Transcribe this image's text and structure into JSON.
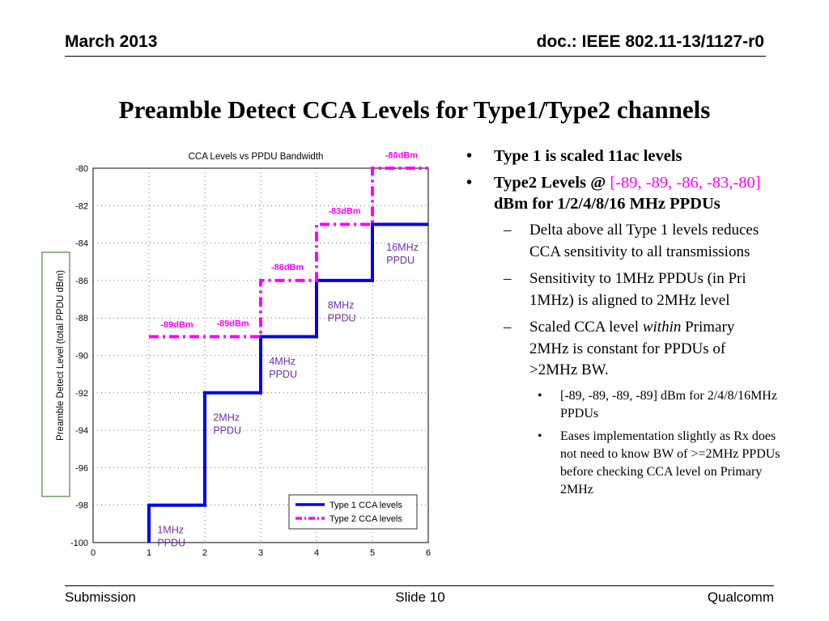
{
  "header": {
    "date": "March 2013",
    "doc": "doc.: IEEE 802.11-13/1127-r0"
  },
  "title": "Preamble Detect CCA Levels for Type1/Type2 channels",
  "footer": {
    "left": "Submission",
    "center": "Slide 10",
    "right": "Qualcomm"
  },
  "bullets": {
    "b1": "Type 1 is scaled 11ac levels",
    "b2_pre": "Type2 Levels @ ",
    "b2_hl": "[-89, -89, -86, -83,-80]",
    "b2_post": " dBm for 1/2/4/8/16 MHz PPDUs",
    "s1": "Delta above all Type 1 levels reduces CCA sensitivity to all transmissions",
    "s2": "Sensitivity to 1MHz PPDUs (in Pri 1MHz) is aligned to 2MHz level",
    "s3_pre": "Scaled CCA level ",
    "s3_it": "within",
    "s3_post": " Primary 2MHz is constant for PPDUs of >2MHz BW.",
    "t1": "[-89, -89, -89, -89] dBm for 2/4/8/16MHz PPDUs",
    "t2": "Eases implementation slightly as Rx does not need to know BW of >=2MHz PPDUs before checking CCA level on Primary 2MHz"
  },
  "chart_data": {
    "type": "line",
    "title": "CCA Levels vs PPDU Bandwidth",
    "ylabel": "Preamble Detect Level (total PPDU dBm)",
    "xlabel": "",
    "xlim": [
      0,
      6
    ],
    "ylim": [
      -100,
      -80
    ],
    "xticks": [
      "0",
      "1",
      "2",
      "3",
      "4",
      "5",
      "6"
    ],
    "yticks": [
      "-80",
      "-82",
      "-84",
      "-86",
      "-88",
      "-90",
      "-92",
      "-94",
      "-96",
      "-98",
      "-100"
    ],
    "grid": true,
    "legend": "bottom-right",
    "series": [
      {
        "name": "Type 1 CCA levels",
        "color": "#0000ee",
        "style": "solid",
        "x": [
          1,
          1,
          2,
          2,
          3,
          3,
          4,
          4,
          5,
          5,
          6
        ],
        "y": [
          -100,
          -98,
          -98,
          -92,
          -92,
          -89,
          -89,
          -86,
          -86,
          -83,
          -83
        ]
      },
      {
        "name": "Type 2 CCA levels",
        "color": "#ff00ff",
        "style": "dashdot",
        "x": [
          1,
          3,
          3,
          4,
          4,
          5,
          5,
          6
        ],
        "y": [
          -89,
          -89,
          -86,
          -86,
          -83,
          -83,
          -80,
          -80
        ]
      }
    ],
    "annotations": [
      {
        "text": "1MHz\nPPDU",
        "x": 1.15,
        "y": -99.5,
        "color": "#7030a0"
      },
      {
        "text": "2MHz\nPPDU",
        "x": 2.15,
        "y": -93.5,
        "color": "#7030a0"
      },
      {
        "text": "4MHz\nPPDU",
        "x": 3.15,
        "y": -90.5,
        "color": "#7030a0"
      },
      {
        "text": "8MHz\nPPDU",
        "x": 4.2,
        "y": -87.5,
        "color": "#7030a0"
      },
      {
        "text": "16MHz\nPPDU",
        "x": 5.25,
        "y": -84.4,
        "color": "#7030a0"
      },
      {
        "text": "-89dBm",
        "x": 1.5,
        "y": -88.5,
        "color": "#ff00ff"
      },
      {
        "text": "-89dBm",
        "x": 2.5,
        "y": -88.45,
        "color": "#ff00ff"
      },
      {
        "text": "-86dBm",
        "x": 3.48,
        "y": -85.45,
        "color": "#ff00ff"
      },
      {
        "text": "-83dBm",
        "x": 4.5,
        "y": -82.45,
        "color": "#ff00ff"
      },
      {
        "text": "-80dBm",
        "x": 5.52,
        "y": -79.45,
        "color": "#ff00ff"
      }
    ]
  }
}
